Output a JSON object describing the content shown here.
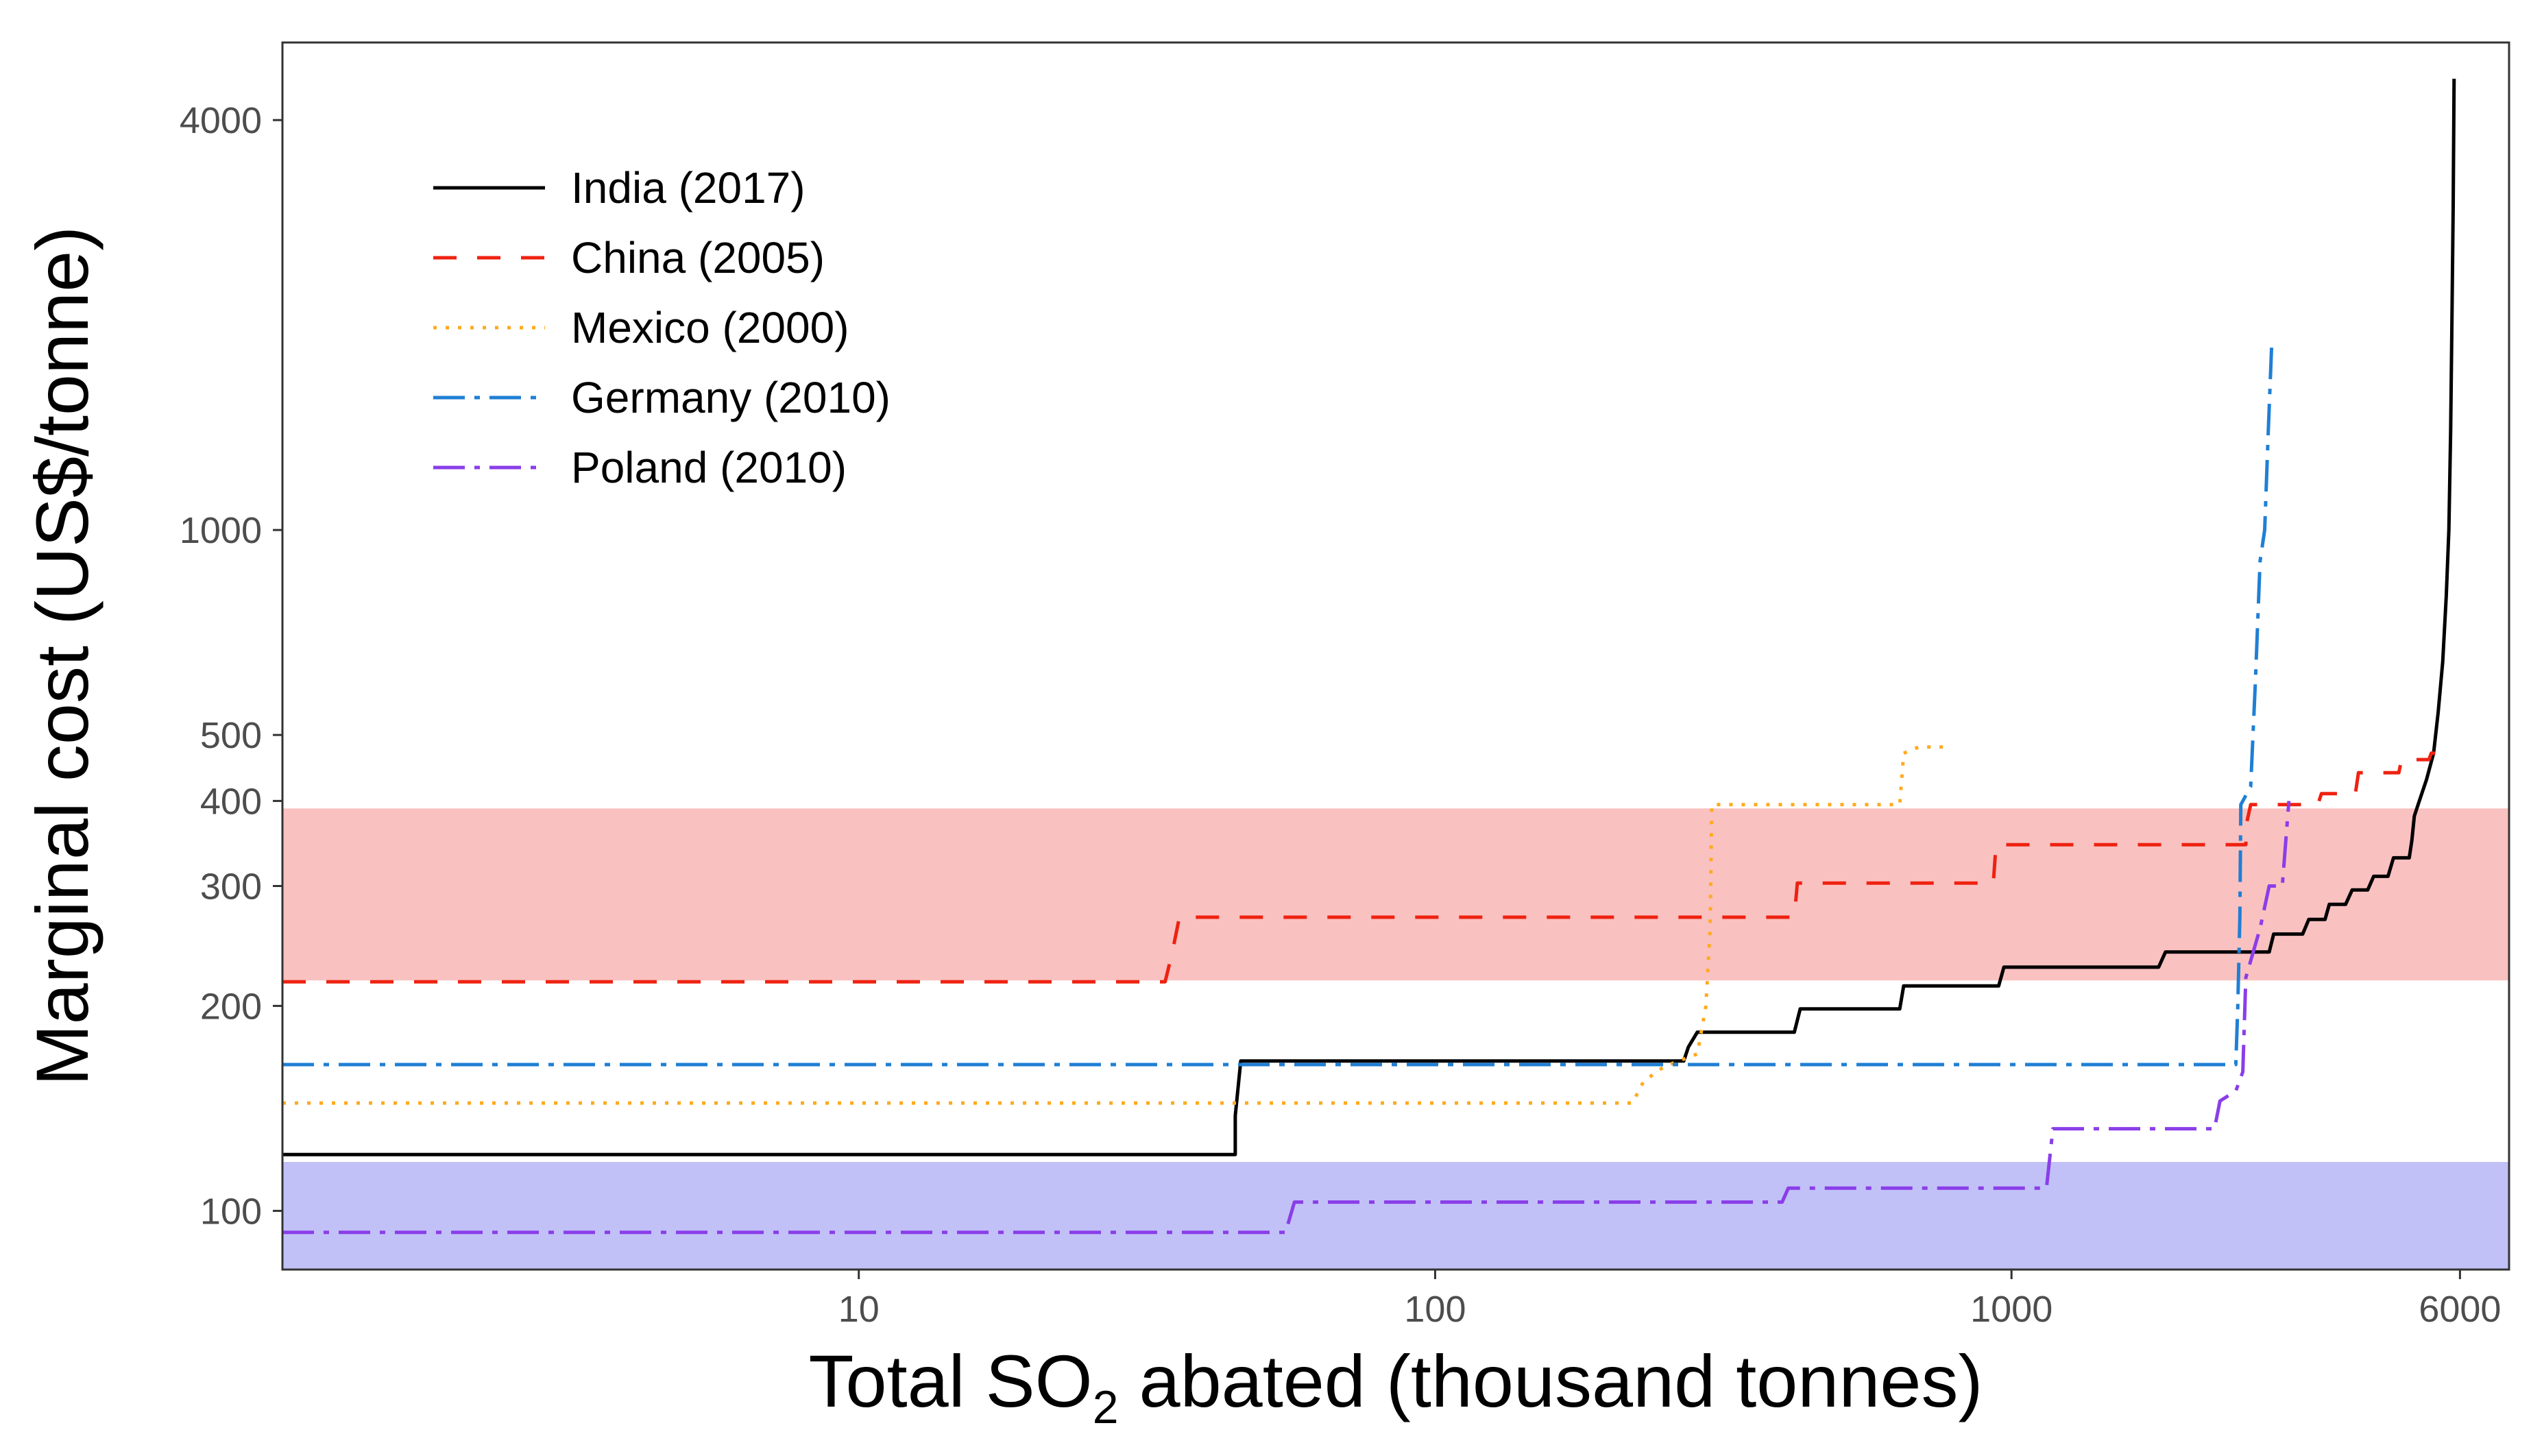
{
  "chart_data": {
    "type": "line",
    "subtype": "step",
    "x_scale": "log",
    "y_scale": "log",
    "xlim": [
      1,
      7300
    ],
    "ylim": [
      82,
      5200
    ],
    "xlabel": {
      "prefix": "Total SO",
      "subscript": "2",
      "suffix": " abated (thousand tonnes)"
    },
    "ylabel": "Marginal cost (US$/tonne)",
    "x_ticks": [
      {
        "value": 10,
        "label": "10"
      },
      {
        "value": 100,
        "label": "100"
      },
      {
        "value": 1000,
        "label": "1000"
      },
      {
        "value": 6000,
        "label": "6000"
      }
    ],
    "y_ticks": [
      {
        "value": 100,
        "label": "100"
      },
      {
        "value": 200,
        "label": "200"
      },
      {
        "value": 300,
        "label": "300"
      },
      {
        "value": 400,
        "label": "400"
      },
      {
        "value": 500,
        "label": "500"
      },
      {
        "value": 1000,
        "label": "1000"
      },
      {
        "value": 4000,
        "label": "4000"
      }
    ],
    "bands": [
      {
        "name": "high-cost-band",
        "y_from": 218,
        "y_to": 390,
        "color": "#f8a0a0",
        "opacity": 0.65
      },
      {
        "name": "low-cost-band",
        "y_from": 82,
        "y_to": 118,
        "color": "#a9a9f5",
        "opacity": 0.72
      }
    ],
    "legend_position": "top-left",
    "series": [
      {
        "name": "India (2017)",
        "color": "#000000",
        "dash": "",
        "points": [
          [
            1,
            121
          ],
          [
            45,
            121
          ],
          [
            45,
            138
          ],
          [
            46,
            166
          ],
          [
            270,
            166
          ],
          [
            275,
            174
          ],
          [
            285,
            183
          ],
          [
            420,
            183
          ],
          [
            430,
            198
          ],
          [
            640,
            198
          ],
          [
            650,
            214
          ],
          [
            950,
            214
          ],
          [
            970,
            228
          ],
          [
            1800,
            228
          ],
          [
            1850,
            240
          ],
          [
            2800,
            240
          ],
          [
            2850,
            255
          ],
          [
            3200,
            255
          ],
          [
            3280,
            268
          ],
          [
            3500,
            268
          ],
          [
            3560,
            282
          ],
          [
            3800,
            282
          ],
          [
            3900,
            296
          ],
          [
            4150,
            296
          ],
          [
            4250,
            310
          ],
          [
            4500,
            310
          ],
          [
            4600,
            330
          ],
          [
            4900,
            330
          ],
          [
            4950,
            350
          ],
          [
            5000,
            380
          ],
          [
            5100,
            400
          ],
          [
            5250,
            430
          ],
          [
            5400,
            470
          ],
          [
            5500,
            540
          ],
          [
            5600,
            640
          ],
          [
            5680,
            800
          ],
          [
            5740,
            1000
          ],
          [
            5780,
            1400
          ],
          [
            5810,
            2000
          ],
          [
            5840,
            3000
          ],
          [
            5860,
            4600
          ]
        ]
      },
      {
        "name": "China (2005)",
        "color": "#ee2211",
        "dash": "34,30",
        "points": [
          [
            1,
            217
          ],
          [
            34,
            217
          ],
          [
            35,
            240
          ],
          [
            36,
            270
          ],
          [
            420,
            270
          ],
          [
            425,
            303
          ],
          [
            930,
            303
          ],
          [
            940,
            345
          ],
          [
            2550,
            345
          ],
          [
            2560,
            372
          ],
          [
            2600,
            395
          ],
          [
            3400,
            395
          ],
          [
            3450,
            410
          ],
          [
            3950,
            410
          ],
          [
            4000,
            440
          ],
          [
            4700,
            440
          ],
          [
            4750,
            460
          ],
          [
            5300,
            460
          ],
          [
            5350,
            470
          ],
          [
            5900,
            470
          ]
        ]
      },
      {
        "name": "Mexico (2000)",
        "color": "#ffaa1d",
        "dash": "5,13",
        "points": [
          [
            1,
            144
          ],
          [
            220,
            144
          ],
          [
            230,
            155
          ],
          [
            250,
            163
          ],
          [
            285,
            170
          ],
          [
            295,
            200
          ],
          [
            300,
            260
          ],
          [
            302,
            395
          ],
          [
            640,
            395
          ],
          [
            650,
            470
          ],
          [
            690,
            480
          ],
          [
            780,
            480
          ]
        ]
      },
      {
        "name": "Germany (2010)",
        "color": "#1f7fd4",
        "dash": "46,14,8,14",
        "points": [
          [
            1,
            164
          ],
          [
            2450,
            164
          ],
          [
            2470,
            200
          ],
          [
            2490,
            270
          ],
          [
            2500,
            395
          ],
          [
            2600,
            420
          ],
          [
            2650,
            600
          ],
          [
            2700,
            900
          ],
          [
            2750,
            1000
          ],
          [
            2790,
            1400
          ],
          [
            2830,
            1900
          ]
        ]
      },
      {
        "name": "Poland (2010)",
        "color": "#8a3ee8",
        "dash": "46,14,8,14",
        "points": [
          [
            1,
            93
          ],
          [
            55,
            93
          ],
          [
            57,
            103
          ],
          [
            400,
            103
          ],
          [
            410,
            108
          ],
          [
            1150,
            108
          ],
          [
            1180,
            132
          ],
          [
            2250,
            132
          ],
          [
            2300,
            145
          ],
          [
            2450,
            150
          ],
          [
            2520,
            160
          ],
          [
            2550,
            220
          ],
          [
            2700,
            260
          ],
          [
            2800,
            300
          ],
          [
            2950,
            300
          ],
          [
            3000,
            360
          ],
          [
            3030,
            400
          ]
        ]
      }
    ]
  }
}
